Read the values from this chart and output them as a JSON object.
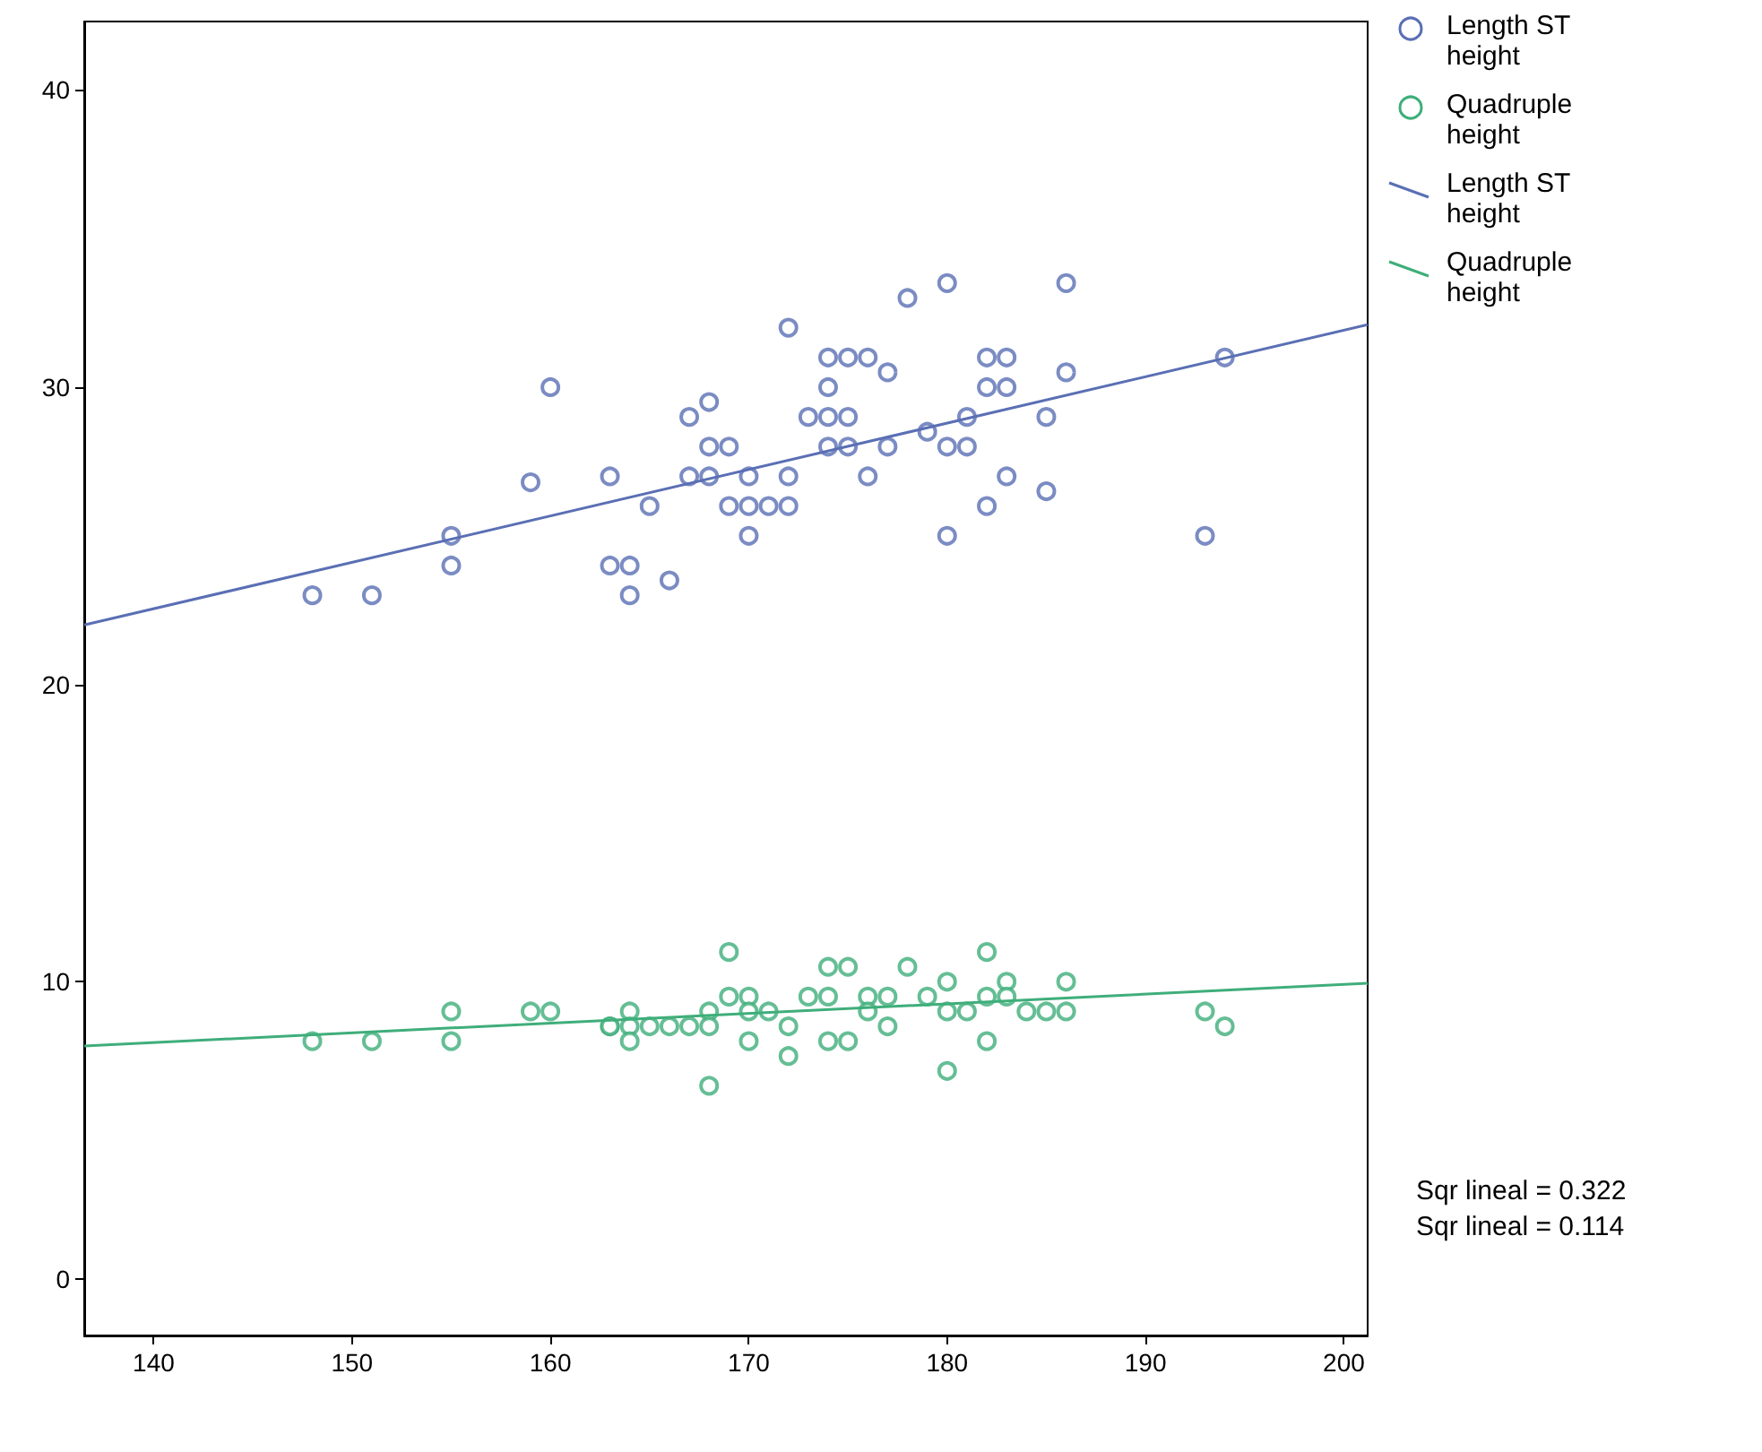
{
  "chart_data": {
    "type": "scatter",
    "xlim": [
      136.5,
      201.2
    ],
    "ylim": [
      -1.9,
      42.3
    ],
    "xticks": [
      140,
      150,
      160,
      170,
      180,
      190,
      200
    ],
    "yticks": [
      0,
      10,
      20,
      30,
      40
    ],
    "grid": false,
    "legend": "top right",
    "marker": "circle",
    "annotations": [
      "Sqr lineal = 0.322",
      "Sqr lineal = 0.114"
    ],
    "series": [
      {
        "name": "Length ST height",
        "color": "#5a6fb4",
        "x": [
          148,
          151,
          155,
          155,
          159,
          160,
          163,
          163,
          164,
          164,
          165,
          166,
          167,
          167,
          168,
          168,
          168,
          169,
          169,
          170,
          170,
          170,
          171,
          172,
          172,
          172,
          173,
          174,
          174,
          174,
          174,
          175,
          175,
          175,
          176,
          176,
          177,
          177,
          178,
          179,
          180,
          180,
          180,
          181,
          181,
          182,
          182,
          182,
          183,
          183,
          183,
          185,
          185,
          186,
          186,
          193,
          194
        ],
        "values": [
          23,
          23,
          25,
          24,
          26.8,
          30,
          27,
          24,
          24,
          23,
          26,
          23.5,
          29,
          27,
          29.5,
          28,
          27,
          28,
          26,
          27,
          26,
          25,
          26,
          26,
          27,
          32,
          29,
          31,
          30,
          29,
          28,
          31,
          29,
          28,
          31,
          27,
          30.5,
          28,
          33,
          28.5,
          33.5,
          28,
          25,
          29,
          28,
          31,
          30,
          26,
          31,
          30,
          27,
          29,
          26.5,
          33.5,
          30.5,
          25,
          31
        ]
      },
      {
        "name": "Quadruple height",
        "color": "#3fae7a",
        "x": [
          148,
          151,
          155,
          155,
          159,
          160,
          163,
          163,
          164,
          164,
          164,
          165,
          166,
          167,
          168,
          168,
          168,
          169,
          169,
          170,
          170,
          170,
          171,
          172,
          172,
          173,
          174,
          174,
          174,
          175,
          175,
          176,
          176,
          177,
          177,
          178,
          179,
          180,
          180,
          180,
          181,
          182,
          182,
          182,
          183,
          183,
          184,
          185,
          186,
          186,
          193,
          194
        ],
        "values": [
          8,
          8,
          9,
          8,
          9,
          9,
          8.5,
          8.5,
          9,
          8.5,
          8,
          8.5,
          8.5,
          8.5,
          9,
          6.5,
          8.5,
          11,
          9.5,
          9.5,
          9,
          8,
          9,
          8.5,
          7.5,
          9.5,
          10.5,
          9.5,
          8,
          10.5,
          8,
          9.5,
          9,
          9.5,
          8.5,
          10.5,
          9.5,
          10,
          9,
          7,
          9,
          11,
          9.5,
          8,
          10,
          9.5,
          9,
          9,
          10,
          9,
          9,
          8.5
        ]
      },
      {
        "name": "Length ST height",
        "type": "line",
        "marker": "none",
        "color": "#5a6fb4",
        "x": [
          136.5,
          201.2
        ],
        "values": [
          22.0,
          32.1
        ]
      },
      {
        "name": "Quadruple height",
        "type": "line",
        "marker": "none",
        "color": "#3fae7a",
        "x": [
          136.5,
          201.2
        ],
        "values": [
          7.84,
          9.95
        ]
      }
    ]
  }
}
